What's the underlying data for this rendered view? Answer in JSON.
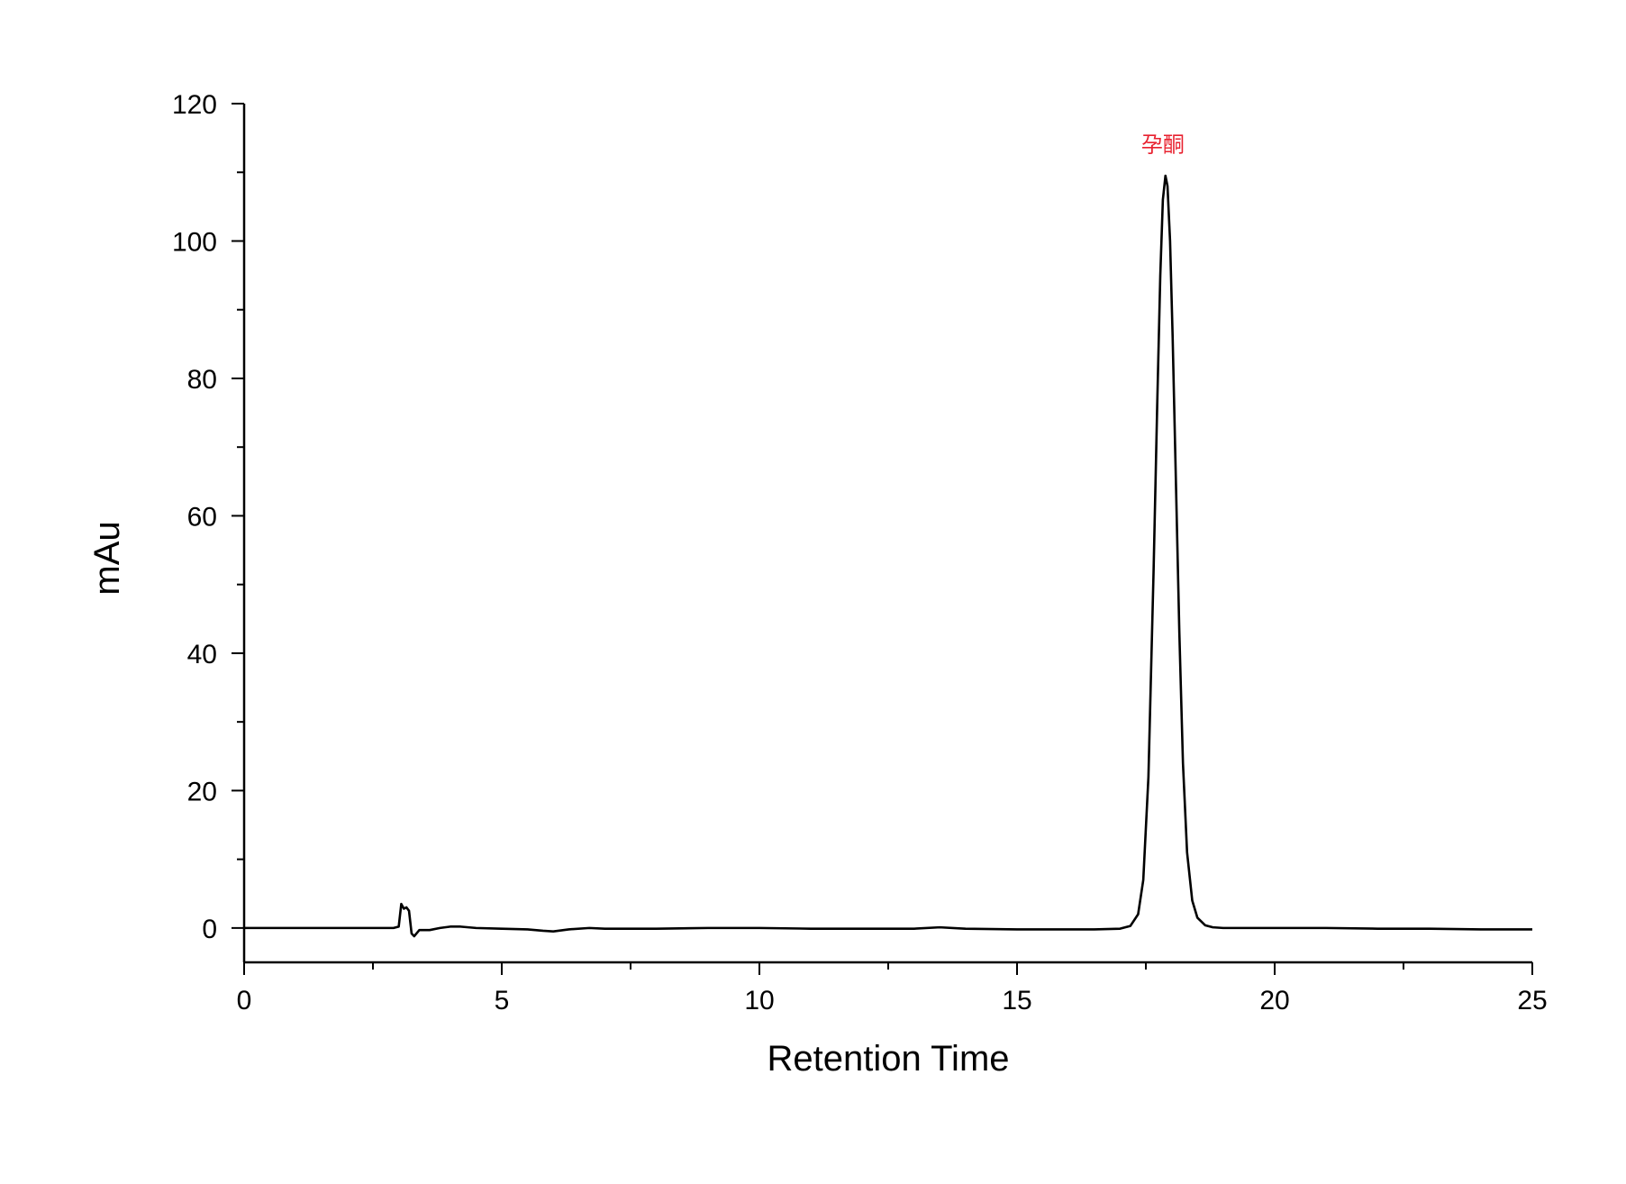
{
  "chart_data": {
    "type": "line",
    "xlabel": "Retention Time",
    "ylabel": "mAu",
    "xlim": [
      0,
      25
    ],
    "ylim": [
      -5,
      120
    ],
    "x_ticks": [
      0,
      5,
      10,
      15,
      20,
      25
    ],
    "y_ticks": [
      0,
      20,
      40,
      60,
      80,
      100,
      120
    ],
    "x_minor_step": 2.5,
    "y_minor_step": 10,
    "grid": false,
    "line_color": "#000000",
    "series": [
      {
        "x": [
          0,
          0.5,
          1,
          1.5,
          2,
          2.5,
          2.9,
          3.0,
          3.05,
          3.1,
          3.15,
          3.2,
          3.25,
          3.3,
          3.4,
          3.6,
          3.8,
          4.0,
          4.2,
          4.5,
          5.0,
          5.5,
          5.8,
          6.0,
          6.3,
          6.7,
          7.0,
          8.0,
          9.0,
          10.0,
          11.0,
          12.0,
          13.0,
          13.5,
          14.0,
          15.0,
          16.0,
          16.5,
          17.0,
          17.2,
          17.35,
          17.45,
          17.55,
          17.65,
          17.72,
          17.78,
          17.83,
          17.88,
          17.92,
          17.97,
          18.02,
          18.08,
          18.15,
          18.22,
          18.3,
          18.4,
          18.5,
          18.65,
          18.8,
          19.0,
          19.5,
          20.0,
          21.0,
          22.0,
          23.0,
          24.0,
          25.0
        ],
        "y": [
          0,
          0,
          0,
          0,
          0,
          0,
          0,
          0.2,
          3.5,
          2.8,
          3.0,
          2.5,
          -0.8,
          -1.2,
          -0.3,
          -0.3,
          0,
          0.2,
          0.2,
          0,
          -0.1,
          -0.2,
          -0.4,
          -0.5,
          -0.2,
          0,
          -0.1,
          -0.1,
          0,
          0,
          -0.1,
          -0.1,
          -0.1,
          0.1,
          -0.1,
          -0.2,
          -0.2,
          -0.2,
          -0.1,
          0.3,
          2.0,
          7.0,
          22.0,
          52.0,
          76.0,
          95.0,
          106.0,
          109.5,
          108.0,
          100.0,
          86.0,
          66.0,
          43.0,
          24.0,
          11.0,
          4.0,
          1.5,
          0.4,
          0.1,
          0,
          0,
          0,
          0,
          -0.1,
          -0.1,
          -0.2,
          -0.2
        ]
      }
    ],
    "annotations": [
      {
        "text": "孕酮",
        "x": 17.9,
        "y": 113,
        "color": "#e8212f"
      }
    ]
  }
}
